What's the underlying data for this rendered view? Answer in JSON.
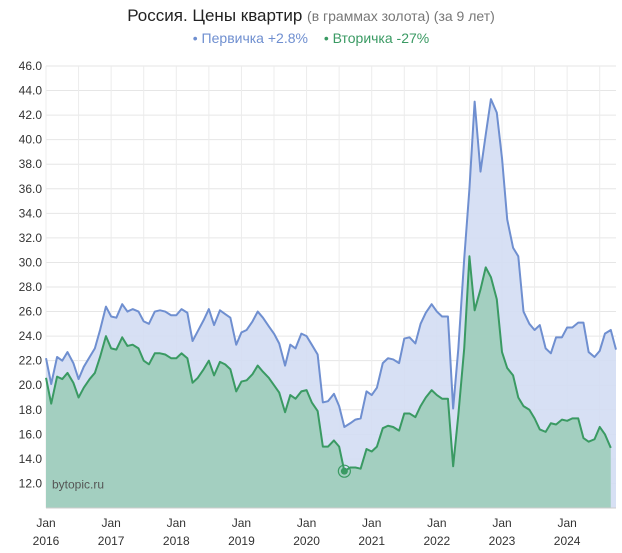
{
  "chart_data": {
    "type": "area",
    "title": "Россия. Цены квартир",
    "subtitle": "(в граммах золота) (за 9 лет)",
    "watermark": "bytopic.ru",
    "ylim": [
      10,
      46
    ],
    "yticks": [
      "46.0",
      "44.0",
      "42.0",
      "40.0",
      "38.0",
      "36.0",
      "34.0",
      "32.0",
      "30.0",
      "28.0",
      "26.0",
      "24.0",
      "22.0",
      "20.0",
      "18.0",
      "16.0",
      "14.0",
      "12.0"
    ],
    "xticks": [
      {
        "label": "Jan",
        "year": "2016",
        "x": 2016.0
      },
      {
        "label": "Jan",
        "year": "2017",
        "x": 2017.0
      },
      {
        "label": "Jan",
        "year": "2018",
        "x": 2018.0
      },
      {
        "label": "Jan",
        "year": "2019",
        "x": 2019.0
      },
      {
        "label": "Jan",
        "year": "2020",
        "x": 2020.0
      },
      {
        "label": "Jan",
        "year": "2021",
        "x": 2021.0
      },
      {
        "label": "Jan",
        "year": "2022",
        "x": 2022.0
      },
      {
        "label": "Jan",
        "year": "2023",
        "x": 2023.0
      },
      {
        "label": "Jan",
        "year": "2024",
        "x": 2024.0
      }
    ],
    "grid": true,
    "series": [
      {
        "name": "Первичка +2.8%",
        "legend_label": "• Первичка +2.8%",
        "color": "#6f8fd0",
        "fill": "#d3ddf3",
        "points": [
          [
            2016.0,
            22.2
          ],
          [
            2016.08,
            20.1
          ],
          [
            2016.17,
            22.3
          ],
          [
            2016.25,
            22.0
          ],
          [
            2016.33,
            22.7
          ],
          [
            2016.42,
            21.8
          ],
          [
            2016.5,
            20.5
          ],
          [
            2016.58,
            21.5
          ],
          [
            2016.67,
            22.3
          ],
          [
            2016.75,
            23.0
          ],
          [
            2016.83,
            24.5
          ],
          [
            2016.92,
            26.4
          ],
          [
            2017.0,
            25.6
          ],
          [
            2017.08,
            25.5
          ],
          [
            2017.17,
            26.6
          ],
          [
            2017.25,
            26.0
          ],
          [
            2017.33,
            26.2
          ],
          [
            2017.42,
            26.0
          ],
          [
            2017.5,
            25.2
          ],
          [
            2017.58,
            25.0
          ],
          [
            2017.67,
            26.0
          ],
          [
            2017.75,
            26.1
          ],
          [
            2017.83,
            26.0
          ],
          [
            2017.92,
            25.7
          ],
          [
            2018.0,
            25.7
          ],
          [
            2018.08,
            26.2
          ],
          [
            2018.17,
            25.9
          ],
          [
            2018.25,
            23.6
          ],
          [
            2018.33,
            24.4
          ],
          [
            2018.42,
            25.3
          ],
          [
            2018.5,
            26.2
          ],
          [
            2018.58,
            24.9
          ],
          [
            2018.67,
            26.1
          ],
          [
            2018.75,
            25.8
          ],
          [
            2018.83,
            25.5
          ],
          [
            2018.92,
            23.3
          ],
          [
            2019.0,
            24.3
          ],
          [
            2019.08,
            24.5
          ],
          [
            2019.17,
            25.2
          ],
          [
            2019.25,
            26.0
          ],
          [
            2019.33,
            25.5
          ],
          [
            2019.42,
            24.8
          ],
          [
            2019.5,
            24.2
          ],
          [
            2019.58,
            23.4
          ],
          [
            2019.67,
            21.6
          ],
          [
            2019.75,
            23.3
          ],
          [
            2019.83,
            23.0
          ],
          [
            2019.92,
            24.2
          ],
          [
            2020.0,
            24.0
          ],
          [
            2020.08,
            23.3
          ],
          [
            2020.17,
            22.5
          ],
          [
            2020.25,
            18.6
          ],
          [
            2020.33,
            18.7
          ],
          [
            2020.42,
            19.3
          ],
          [
            2020.5,
            18.3
          ],
          [
            2020.58,
            16.6
          ],
          [
            2020.67,
            16.9
          ],
          [
            2020.75,
            17.2
          ],
          [
            2020.83,
            17.3
          ],
          [
            2020.92,
            19.5
          ],
          [
            2021.0,
            19.2
          ],
          [
            2021.08,
            19.8
          ],
          [
            2021.17,
            21.8
          ],
          [
            2021.25,
            22.2
          ],
          [
            2021.33,
            22.1
          ],
          [
            2021.42,
            21.8
          ],
          [
            2021.5,
            23.8
          ],
          [
            2021.58,
            23.9
          ],
          [
            2021.67,
            23.4
          ],
          [
            2021.75,
            25.0
          ],
          [
            2021.83,
            25.9
          ],
          [
            2021.92,
            26.6
          ],
          [
            2022.0,
            26.0
          ],
          [
            2022.08,
            25.6
          ],
          [
            2022.17,
            25.6
          ],
          [
            2022.25,
            18.1
          ],
          [
            2022.33,
            23.0
          ],
          [
            2022.42,
            30.3
          ],
          [
            2022.5,
            36.0
          ],
          [
            2022.58,
            43.1
          ],
          [
            2022.67,
            37.4
          ],
          [
            2022.75,
            40.4
          ],
          [
            2022.83,
            43.3
          ],
          [
            2022.92,
            42.2
          ],
          [
            2023.0,
            38.5
          ],
          [
            2023.08,
            33.5
          ],
          [
            2023.17,
            31.2
          ],
          [
            2023.25,
            30.5
          ],
          [
            2023.33,
            26.0
          ],
          [
            2023.42,
            25.0
          ],
          [
            2023.5,
            24.5
          ],
          [
            2023.58,
            24.9
          ],
          [
            2023.67,
            23.0
          ],
          [
            2023.75,
            22.6
          ],
          [
            2023.83,
            23.9
          ],
          [
            2023.92,
            23.9
          ],
          [
            2024.0,
            24.7
          ],
          [
            2024.08,
            24.7
          ],
          [
            2024.17,
            25.1
          ],
          [
            2024.25,
            25.1
          ],
          [
            2024.33,
            22.7
          ],
          [
            2024.42,
            22.3
          ],
          [
            2024.5,
            22.8
          ],
          [
            2024.58,
            24.2
          ],
          [
            2024.67,
            24.5
          ],
          [
            2024.75,
            22.9
          ]
        ]
      },
      {
        "name": "Вторичка -27%",
        "legend_label": "• Вторичка -27%",
        "color": "#3a9a63",
        "fill": "#a3cfc0",
        "points": [
          [
            2016.0,
            20.6
          ],
          [
            2016.08,
            18.5
          ],
          [
            2016.17,
            20.7
          ],
          [
            2016.25,
            20.5
          ],
          [
            2016.33,
            21.0
          ],
          [
            2016.42,
            20.2
          ],
          [
            2016.5,
            19.0
          ],
          [
            2016.58,
            19.8
          ],
          [
            2016.67,
            20.5
          ],
          [
            2016.75,
            21.0
          ],
          [
            2016.83,
            22.3
          ],
          [
            2016.92,
            24.0
          ],
          [
            2017.0,
            23.0
          ],
          [
            2017.08,
            22.9
          ],
          [
            2017.17,
            23.9
          ],
          [
            2017.25,
            23.2
          ],
          [
            2017.33,
            23.3
          ],
          [
            2017.42,
            23.0
          ],
          [
            2017.5,
            22.0
          ],
          [
            2017.58,
            21.7
          ],
          [
            2017.67,
            22.6
          ],
          [
            2017.75,
            22.6
          ],
          [
            2017.83,
            22.5
          ],
          [
            2017.92,
            22.2
          ],
          [
            2018.0,
            22.2
          ],
          [
            2018.08,
            22.6
          ],
          [
            2018.17,
            22.2
          ],
          [
            2018.25,
            20.2
          ],
          [
            2018.33,
            20.6
          ],
          [
            2018.42,
            21.3
          ],
          [
            2018.5,
            22.0
          ],
          [
            2018.58,
            20.8
          ],
          [
            2018.67,
            21.9
          ],
          [
            2018.75,
            21.7
          ],
          [
            2018.83,
            21.3
          ],
          [
            2018.92,
            19.5
          ],
          [
            2019.0,
            20.3
          ],
          [
            2019.08,
            20.4
          ],
          [
            2019.17,
            20.9
          ],
          [
            2019.25,
            21.6
          ],
          [
            2019.33,
            21.1
          ],
          [
            2019.42,
            20.6
          ],
          [
            2019.5,
            20.0
          ],
          [
            2019.58,
            19.4
          ],
          [
            2019.67,
            17.8
          ],
          [
            2019.75,
            19.2
          ],
          [
            2019.83,
            18.9
          ],
          [
            2019.92,
            19.5
          ],
          [
            2020.0,
            19.6
          ],
          [
            2020.08,
            18.6
          ],
          [
            2020.17,
            17.9
          ],
          [
            2020.25,
            15.0
          ],
          [
            2020.33,
            15.0
          ],
          [
            2020.42,
            15.5
          ],
          [
            2020.5,
            15.0
          ],
          [
            2020.58,
            13.0
          ],
          [
            2020.67,
            13.3
          ],
          [
            2020.75,
            13.3
          ],
          [
            2020.83,
            13.2
          ],
          [
            2020.92,
            14.8
          ],
          [
            2021.0,
            14.6
          ],
          [
            2021.08,
            15.0
          ],
          [
            2021.17,
            16.5
          ],
          [
            2021.25,
            16.7
          ],
          [
            2021.33,
            16.6
          ],
          [
            2021.42,
            16.3
          ],
          [
            2021.5,
            17.7
          ],
          [
            2021.58,
            17.7
          ],
          [
            2021.67,
            17.4
          ],
          [
            2021.75,
            18.3
          ],
          [
            2021.83,
            19.0
          ],
          [
            2021.92,
            19.6
          ],
          [
            2022.0,
            19.2
          ],
          [
            2022.08,
            18.9
          ],
          [
            2022.17,
            18.9
          ],
          [
            2022.25,
            13.4
          ],
          [
            2022.33,
            17.6
          ],
          [
            2022.42,
            23.0
          ],
          [
            2022.5,
            30.5
          ],
          [
            2022.58,
            26.1
          ],
          [
            2022.67,
            27.8
          ],
          [
            2022.75,
            29.6
          ],
          [
            2022.83,
            28.8
          ],
          [
            2022.92,
            27.0
          ],
          [
            2023.0,
            22.7
          ],
          [
            2023.08,
            21.4
          ],
          [
            2023.17,
            20.8
          ],
          [
            2023.25,
            19.0
          ],
          [
            2023.33,
            18.3
          ],
          [
            2023.42,
            18.0
          ],
          [
            2023.5,
            17.3
          ],
          [
            2023.58,
            16.4
          ],
          [
            2023.67,
            16.2
          ],
          [
            2023.75,
            16.9
          ],
          [
            2023.83,
            16.8
          ],
          [
            2023.92,
            17.2
          ],
          [
            2024.0,
            17.1
          ],
          [
            2024.08,
            17.3
          ],
          [
            2024.17,
            17.3
          ],
          [
            2024.25,
            15.7
          ],
          [
            2024.33,
            15.4
          ],
          [
            2024.42,
            15.6
          ],
          [
            2024.5,
            16.6
          ],
          [
            2024.58,
            16.0
          ],
          [
            2024.67,
            14.9
          ]
        ]
      }
    ],
    "marker_point": {
      "series": 1,
      "x": 2020.58,
      "y": 13.0
    }
  }
}
